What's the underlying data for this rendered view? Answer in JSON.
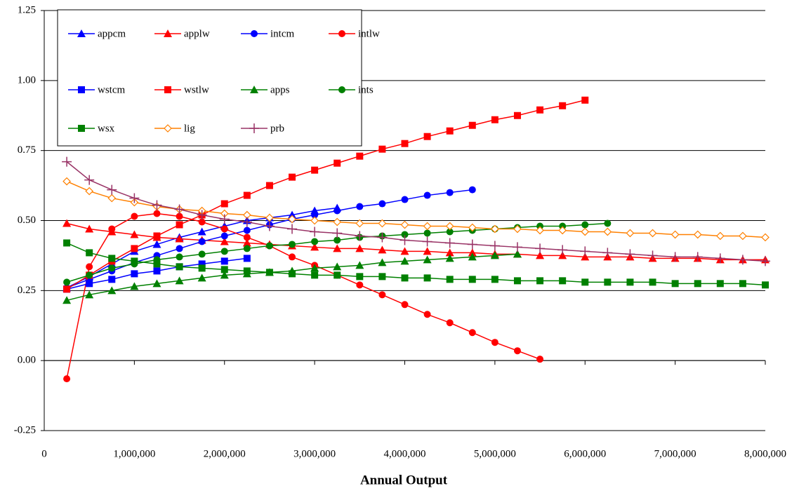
{
  "chart_data": {
    "type": "line",
    "x_label": "Annual Output",
    "x": [
      250000,
      500000,
      750000,
      1000000,
      1250000,
      1500000,
      1750000,
      2000000,
      2250000,
      2500000,
      2750000,
      3000000,
      3250000,
      3500000,
      3750000,
      4000000,
      4250000,
      4500000,
      4750000,
      5000000,
      5250000,
      5500000,
      5750000,
      6000000,
      6250000,
      6500000,
      6750000,
      7000000,
      7250000,
      7500000,
      7750000,
      8000000
    ],
    "xlim": [
      0,
      8000000
    ],
    "xticks": [
      0,
      {
        "value": 1000000,
        "label": "1,000,000"
      },
      {
        "value": 2000000,
        "label": "2,000,000"
      },
      {
        "value": 3000000,
        "label": "3,000,000"
      },
      {
        "value": 4000000,
        "label": "4,000,000"
      },
      {
        "value": 5000000,
        "label": "5,000,000"
      },
      {
        "value": 6000000,
        "label": "6,000,000"
      },
      {
        "value": 7000000,
        "label": "7,000,000"
      },
      {
        "value": 8000000,
        "label": "8,000,000"
      }
    ],
    "ylim": [
      -0.25,
      1.25
    ],
    "yticks": [
      -0.25,
      {
        "value": 0,
        "label": "0.00"
      },
      0.25,
      {
        "value": 0.5,
        "label": "0.50"
      },
      0.75,
      {
        "value": 1,
        "label": "1.00"
      },
      1.25
    ],
    "grid": true,
    "legend": "top-left",
    "series": [
      {
        "name": "appcm",
        "color": "#0000ff",
        "marker": "triangle",
        "values": [
          0.26,
          0.3,
          0.345,
          0.39,
          0.415,
          0.44,
          0.46,
          0.48,
          0.5,
          0.51,
          0.52,
          0.535,
          0.545,
          null,
          null,
          null,
          null,
          null,
          null,
          null,
          null,
          null,
          null,
          null,
          null,
          null,
          null,
          null,
          null,
          null,
          null,
          null
        ]
      },
      {
        "name": "applw",
        "color": "#ff0000",
        "marker": "triangle",
        "values": [
          0.49,
          0.47,
          0.46,
          0.45,
          0.44,
          0.435,
          0.43,
          0.425,
          0.42,
          0.415,
          0.41,
          0.405,
          0.4,
          0.4,
          0.395,
          0.39,
          0.39,
          0.385,
          0.385,
          0.38,
          0.38,
          0.375,
          0.375,
          0.37,
          0.37,
          0.37,
          0.365,
          0.365,
          0.365,
          0.36,
          0.36,
          0.36
        ]
      },
      {
        "name": "intcm",
        "color": "#0000ff",
        "marker": "circle",
        "values": [
          0.26,
          0.29,
          0.32,
          0.35,
          0.375,
          0.4,
          0.425,
          0.445,
          0.465,
          0.485,
          0.505,
          0.52,
          0.535,
          0.55,
          0.56,
          0.575,
          0.59,
          0.6,
          0.61,
          null,
          null,
          null,
          null,
          null,
          null,
          null,
          null,
          null,
          null,
          null,
          null,
          null
        ]
      },
      {
        "name": "intlw",
        "color": "#ff0000",
        "marker": "circle",
        "values": [
          -0.065,
          0.335,
          0.47,
          0.515,
          0.525,
          0.515,
          0.495,
          0.47,
          0.44,
          0.41,
          0.37,
          0.34,
          0.305,
          0.27,
          0.235,
          0.2,
          0.165,
          0.135,
          0.1,
          0.065,
          0.035,
          0.005,
          null,
          null,
          null,
          null,
          null,
          null,
          null,
          null,
          null,
          null
        ]
      },
      {
        "name": "wstcm",
        "color": "#0000ff",
        "marker": "square",
        "values": [
          0.255,
          0.275,
          0.29,
          0.31,
          0.32,
          0.335,
          0.345,
          0.355,
          0.365,
          null,
          null,
          null,
          null,
          null,
          null,
          null,
          null,
          null,
          null,
          null,
          null,
          null,
          null,
          null,
          null,
          null,
          null,
          null,
          null,
          null,
          null,
          null
        ]
      },
      {
        "name": "wstlw",
        "color": "#ff0000",
        "marker": "square",
        "values": [
          0.255,
          0.305,
          0.355,
          0.4,
          0.445,
          0.485,
          0.52,
          0.56,
          0.59,
          0.625,
          0.655,
          0.68,
          0.705,
          0.73,
          0.755,
          0.775,
          0.8,
          0.82,
          0.84,
          0.86,
          0.875,
          0.895,
          0.91,
          0.93,
          null,
          null,
          null,
          null,
          null,
          null,
          null,
          null
        ]
      },
      {
        "name": "apps",
        "color": "#008000",
        "marker": "triangle",
        "values": [
          0.215,
          0.235,
          0.25,
          0.265,
          0.275,
          0.285,
          0.295,
          0.305,
          0.31,
          0.315,
          0.32,
          0.33,
          0.335,
          0.34,
          0.35,
          0.355,
          0.36,
          0.365,
          0.37,
          0.375,
          0.38,
          null,
          null,
          null,
          null,
          null,
          null,
          null,
          null,
          null,
          null,
          null
        ]
      },
      {
        "name": "ints",
        "color": "#008000",
        "marker": "circle",
        "values": [
          0.28,
          0.305,
          0.33,
          0.345,
          0.36,
          0.37,
          0.38,
          0.39,
          0.4,
          0.41,
          0.415,
          0.425,
          0.43,
          0.44,
          0.445,
          0.45,
          0.455,
          0.46,
          0.465,
          0.47,
          0.475,
          0.48,
          0.48,
          0.485,
          0.49,
          null,
          null,
          null,
          null,
          null,
          null,
          null
        ]
      },
      {
        "name": "wsx",
        "color": "#008000",
        "marker": "square",
        "values": [
          0.42,
          0.385,
          0.365,
          0.355,
          0.345,
          0.335,
          0.33,
          0.325,
          0.32,
          0.315,
          0.31,
          0.305,
          0.305,
          0.3,
          0.3,
          0.295,
          0.295,
          0.29,
          0.29,
          0.29,
          0.285,
          0.285,
          0.285,
          0.28,
          0.28,
          0.28,
          0.28,
          0.275,
          0.275,
          0.275,
          0.275,
          0.27
        ]
      },
      {
        "name": "lig",
        "color": "#ff8000",
        "marker": "diamond",
        "values": [
          0.64,
          0.605,
          0.58,
          0.565,
          0.55,
          0.54,
          0.535,
          0.525,
          0.52,
          0.51,
          0.505,
          0.5,
          0.495,
          0.49,
          0.49,
          0.485,
          0.48,
          0.48,
          0.475,
          0.47,
          0.47,
          0.465,
          0.465,
          0.46,
          0.46,
          0.455,
          0.455,
          0.45,
          0.45,
          0.445,
          0.445,
          0.44
        ]
      },
      {
        "name": "prb",
        "color": "#993366",
        "marker": "plus",
        "values": [
          0.71,
          0.645,
          0.61,
          0.58,
          0.555,
          0.54,
          0.52,
          0.505,
          0.495,
          0.48,
          0.47,
          0.46,
          0.455,
          0.445,
          0.44,
          0.43,
          0.425,
          0.42,
          0.415,
          0.41,
          0.405,
          0.4,
          0.395,
          0.39,
          0.385,
          0.38,
          0.375,
          0.37,
          0.37,
          0.365,
          0.36,
          0.355
        ]
      }
    ]
  }
}
